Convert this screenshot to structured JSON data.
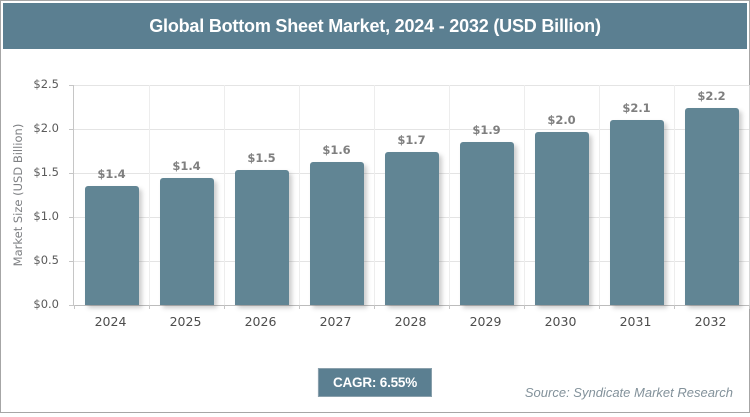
{
  "header": {
    "title": "Global Bottom Sheet Market, 2024 - 2032 (USD Billion)"
  },
  "chart_data": {
    "type": "bar",
    "title": "Global Bottom Sheet Market, 2024 - 2032 (USD Billion)",
    "categories": [
      "2024",
      "2025",
      "2026",
      "2027",
      "2028",
      "2029",
      "2030",
      "2031",
      "2032"
    ],
    "values": [
      1.35,
      1.44,
      1.53,
      1.63,
      1.74,
      1.85,
      1.97,
      2.1,
      2.24
    ],
    "bar_labels": [
      "$1.4",
      "$1.4",
      "$1.5",
      "$1.6",
      "$1.7",
      "$1.9",
      "$2.0",
      "$2.1",
      "$2.2"
    ],
    "xlabel": "",
    "ylabel": "Market Size (USD Billion)",
    "ylim": [
      0,
      2.5
    ],
    "ytick_labels": [
      "$0.0",
      "$0.5",
      "$1.0",
      "$1.5",
      "$2.0",
      "$2.5"
    ],
    "grid": true,
    "legend": "none",
    "bar_color": "#618594"
  },
  "footer": {
    "cagr_label": "CAGR: 6.55%",
    "source": "Source: Syndicate Market Research"
  },
  "colors": {
    "accent_teal": "#5b7f91",
    "bar": "#618594",
    "grid_line": "#e4e4e4",
    "axis_line": "#c6c6c6",
    "value_label": "#7f7f7f",
    "tick_label": "#5a5a5a"
  }
}
